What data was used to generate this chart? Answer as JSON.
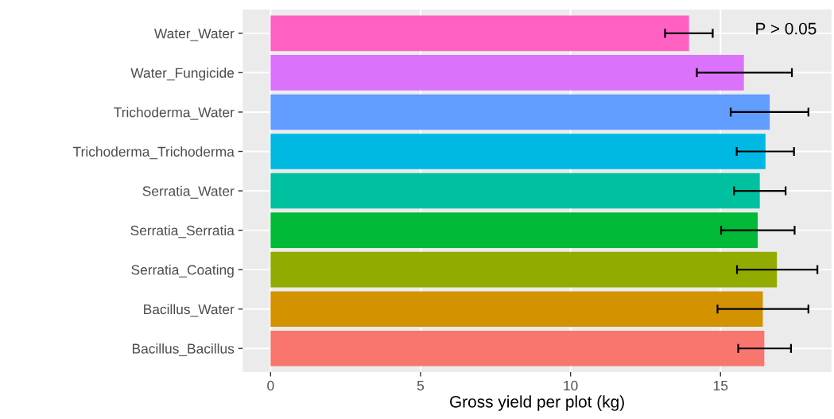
{
  "chart_data": {
    "type": "bar",
    "orientation": "horizontal",
    "xlabel": "Gross yield per plot (kg)",
    "categories": [
      "Water_Water",
      "Water_Fungicide",
      "Trichoderma_Water",
      "Trichoderma_Trichoderma",
      "Serratia_Water",
      "Serratia_Serratia",
      "Serratia_Coating",
      "Bacillus_Water",
      "Bacillus_Bacillus"
    ],
    "values": [
      13.95,
      15.78,
      16.64,
      16.5,
      16.31,
      16.24,
      16.88,
      16.41,
      16.46
    ],
    "errors": [
      [
        13.15,
        14.74
      ],
      [
        14.21,
        17.38
      ],
      [
        15.34,
        17.93
      ],
      [
        15.54,
        17.45
      ],
      [
        15.45,
        17.17
      ],
      [
        15.02,
        17.47
      ],
      [
        15.55,
        18.23
      ],
      [
        14.9,
        17.93
      ],
      [
        15.59,
        17.35
      ]
    ],
    "colors": [
      "#ff61c3",
      "#db72fb",
      "#619cff",
      "#00b9e3",
      "#00c19f",
      "#00ba38",
      "#93aa00",
      "#d39200",
      "#f8766d"
    ],
    "xlim": [
      -0.93,
      18.7
    ],
    "xticks": [
      0,
      5,
      10,
      15
    ],
    "grid": true,
    "annotations": [
      "P > 0.05"
    ]
  }
}
